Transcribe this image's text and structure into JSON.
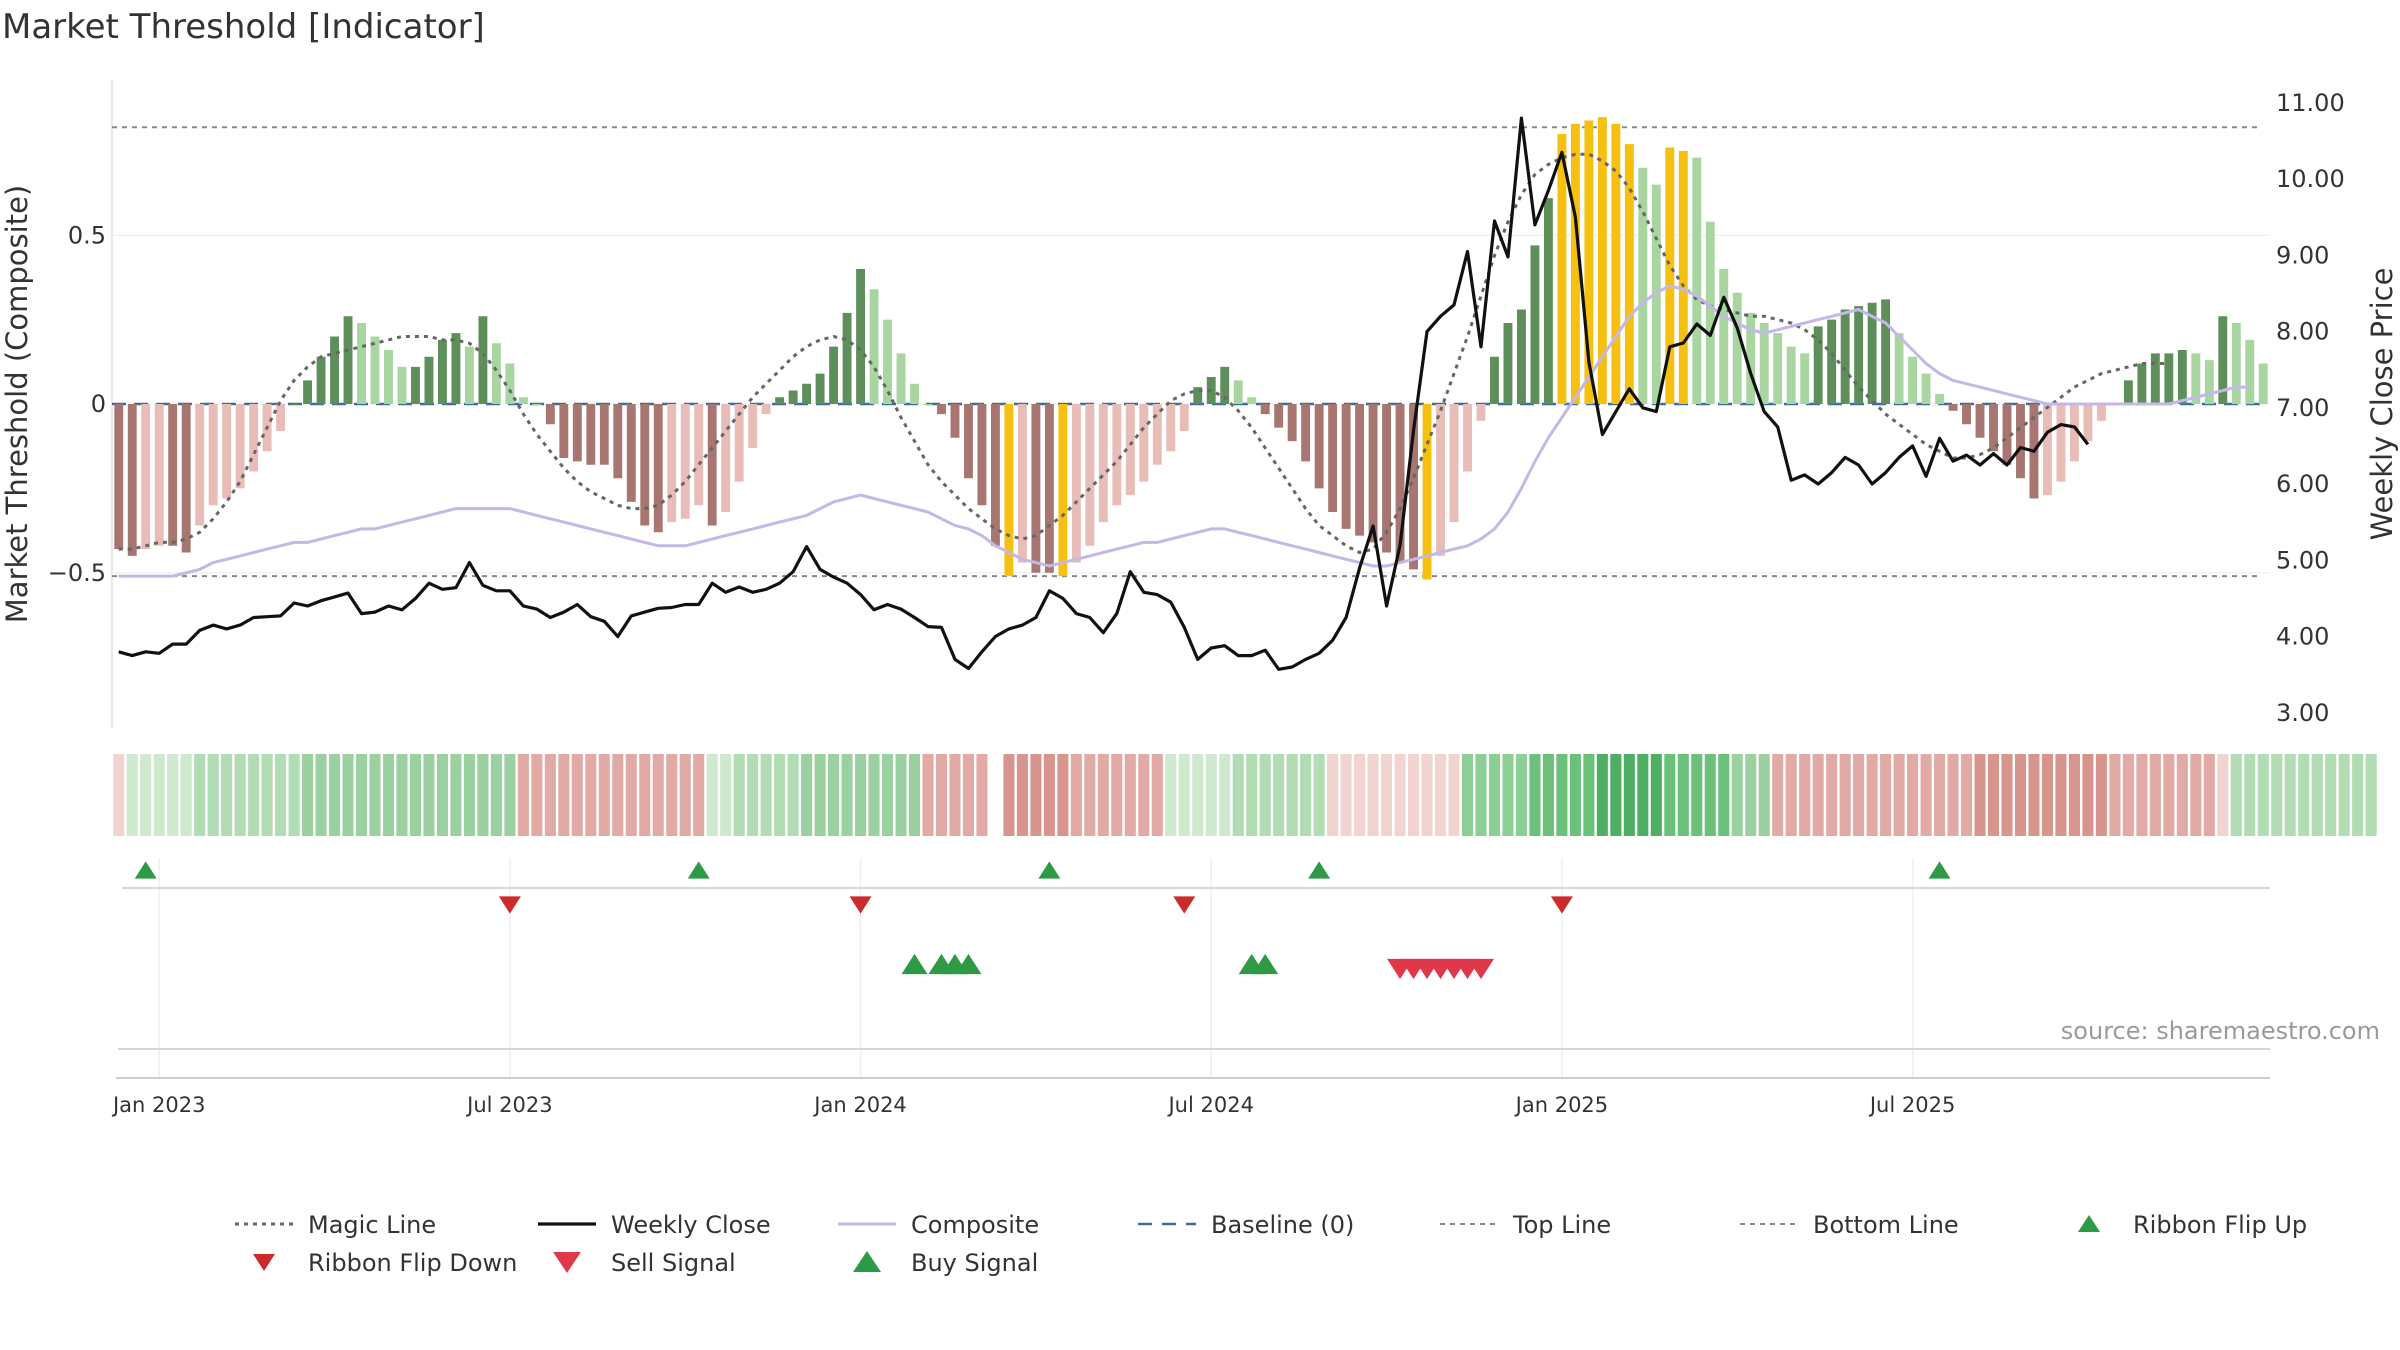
{
  "chart_data": {
    "type": "bar",
    "title": "Market Threshold [Indicator]",
    "source": "source: sharemaestro.com",
    "ylabel_left": "Market Threshold (Composite)",
    "ylabel_right": "Weekly Close Price",
    "ylim_left": [
      -0.96,
      0.96
    ],
    "ylim_right": [
      2.8,
      11.3
    ],
    "left_ticks": [
      {
        "v": 0.5,
        "label": "0.5"
      },
      {
        "v": 0,
        "label": "0"
      },
      {
        "v": -0.5,
        "label": "−0.5"
      }
    ],
    "right_ticks": [
      {
        "v": 11,
        "label": "11.00"
      },
      {
        "v": 10,
        "label": "10.00"
      },
      {
        "v": 9,
        "label": "9.00"
      },
      {
        "v": 8,
        "label": "8.00"
      },
      {
        "v": 7,
        "label": "7.00"
      },
      {
        "v": 6,
        "label": "6.00"
      },
      {
        "v": 5,
        "label": "5.00"
      },
      {
        "v": 4,
        "label": "4.00"
      },
      {
        "v": 3,
        "label": "3.00"
      }
    ],
    "x_ticks": [
      {
        "week": 3,
        "label": "Jan 2023"
      },
      {
        "week": 29,
        "label": "Jul 2023"
      },
      {
        "week": 55,
        "label": "Jan 2024"
      },
      {
        "week": 81,
        "label": "Jul 2024"
      },
      {
        "week": 107,
        "label": "Jan 2025"
      },
      {
        "week": 133,
        "label": "Jul 2025"
      }
    ],
    "top_line": 0.82,
    "bottom_line": -0.51,
    "baseline": 0,
    "composite_bars": [
      -0.43,
      -0.45,
      -0.43,
      -0.42,
      -0.42,
      -0.44,
      -0.36,
      -0.3,
      -0.28,
      -0.25,
      -0.2,
      -0.14,
      -0.08,
      0.0,
      0.07,
      0.14,
      0.2,
      0.26,
      0.24,
      0.2,
      0.16,
      0.11,
      0.11,
      0.14,
      0.19,
      0.21,
      0.17,
      0.26,
      0.18,
      0.12,
      0.02,
      0.0,
      -0.06,
      -0.16,
      -0.17,
      -0.18,
      -0.18,
      -0.22,
      -0.29,
      -0.36,
      -0.38,
      -0.35,
      -0.34,
      -0.3,
      -0.36,
      -0.32,
      -0.23,
      -0.13,
      -0.03,
      0.02,
      0.04,
      0.06,
      0.09,
      0.17,
      0.27,
      0.4,
      0.34,
      0.25,
      0.15,
      0.06,
      0.0,
      -0.03,
      -0.1,
      -0.22,
      -0.3,
      -0.42,
      -0.51,
      -0.47,
      -0.5,
      -0.5,
      -0.51,
      -0.47,
      -0.42,
      -0.35,
      -0.3,
      -0.27,
      -0.23,
      -0.18,
      -0.14,
      -0.08,
      0.05,
      0.08,
      0.11,
      0.07,
      0.02,
      -0.03,
      -0.07,
      -0.11,
      -0.17,
      -0.25,
      -0.32,
      -0.37,
      -0.39,
      -0.41,
      -0.44,
      -0.47,
      -0.49,
      -0.52,
      -0.45,
      -0.35,
      -0.2,
      -0.05,
      0.14,
      0.24,
      0.28,
      0.47,
      0.61,
      0.8,
      0.83,
      0.84,
      0.85,
      0.83,
      0.77,
      0.7,
      0.65,
      0.76,
      0.75,
      0.73,
      0.54,
      0.4,
      0.33,
      0.27,
      0.24,
      0.21,
      0.17,
      0.15,
      0.23,
      0.25,
      0.28,
      0.29,
      0.3,
      0.31,
      0.21,
      0.14,
      0.09,
      0.03,
      -0.02,
      -0.06,
      -0.1,
      -0.14,
      -0.18,
      -0.22,
      -0.28,
      -0.27,
      -0.23,
      -0.17,
      -0.11,
      -0.05,
      0.0,
      0.07,
      0.12,
      0.15,
      0.15,
      0.16,
      0.15,
      0.13,
      0.26,
      0.24,
      0.19,
      0.12
    ],
    "magic_line": [
      -0.43,
      -0.43,
      -0.42,
      -0.41,
      -0.41,
      -0.4,
      -0.38,
      -0.34,
      -0.29,
      -0.23,
      -0.15,
      -0.07,
      0.01,
      0.07,
      0.11,
      0.14,
      0.15,
      0.16,
      0.17,
      0.18,
      0.19,
      0.2,
      0.2,
      0.2,
      0.19,
      0.19,
      0.18,
      0.15,
      0.1,
      0.04,
      -0.03,
      -0.09,
      -0.14,
      -0.19,
      -0.23,
      -0.26,
      -0.28,
      -0.3,
      -0.31,
      -0.31,
      -0.3,
      -0.27,
      -0.23,
      -0.18,
      -0.13,
      -0.08,
      -0.03,
      0.02,
      0.06,
      0.1,
      0.14,
      0.17,
      0.19,
      0.2,
      0.19,
      0.16,
      0.11,
      0.04,
      -0.04,
      -0.11,
      -0.18,
      -0.23,
      -0.27,
      -0.31,
      -0.34,
      -0.37,
      -0.39,
      -0.4,
      -0.39,
      -0.36,
      -0.33,
      -0.29,
      -0.25,
      -0.21,
      -0.17,
      -0.12,
      -0.07,
      -0.03,
      0.01,
      0.03,
      0.04,
      0.04,
      0.02,
      -0.02,
      -0.07,
      -0.13,
      -0.19,
      -0.25,
      -0.31,
      -0.36,
      -0.39,
      -0.42,
      -0.44,
      -0.43,
      -0.38,
      -0.31,
      -0.22,
      -0.12,
      -0.02,
      0.09,
      0.2,
      0.32,
      0.44,
      0.54,
      0.62,
      0.68,
      0.71,
      0.73,
      0.74,
      0.74,
      0.72,
      0.69,
      0.64,
      0.57,
      0.49,
      0.41,
      0.35,
      0.31,
      0.29,
      0.28,
      0.27,
      0.26,
      0.26,
      0.25,
      0.24,
      0.22,
      0.19,
      0.15,
      0.1,
      0.05,
      0.01,
      -0.03,
      -0.06,
      -0.09,
      -0.12,
      -0.14,
      -0.16,
      -0.16,
      -0.15,
      -0.13,
      -0.1,
      -0.07,
      -0.04,
      -0.01,
      0.02,
      0.05,
      0.07,
      0.09,
      0.1,
      0.11,
      0.12,
      0.12,
      0.12
    ],
    "composite_line": [
      -0.51,
      -0.51,
      -0.51,
      -0.51,
      -0.51,
      -0.5,
      -0.49,
      -0.47,
      -0.46,
      -0.45,
      -0.44,
      -0.43,
      -0.42,
      -0.41,
      -0.41,
      -0.4,
      -0.39,
      -0.38,
      -0.37,
      -0.37,
      -0.36,
      -0.35,
      -0.34,
      -0.33,
      -0.32,
      -0.31,
      -0.31,
      -0.31,
      -0.31,
      -0.31,
      -0.32,
      -0.33,
      -0.34,
      -0.35,
      -0.36,
      -0.37,
      -0.38,
      -0.39,
      -0.4,
      -0.41,
      -0.42,
      -0.42,
      -0.42,
      -0.41,
      -0.4,
      -0.39,
      -0.38,
      -0.37,
      -0.36,
      -0.35,
      -0.34,
      -0.33,
      -0.31,
      -0.29,
      -0.28,
      -0.27,
      -0.28,
      -0.29,
      -0.3,
      -0.31,
      -0.32,
      -0.34,
      -0.36,
      -0.37,
      -0.39,
      -0.42,
      -0.44,
      -0.46,
      -0.47,
      -0.48,
      -0.47,
      -0.46,
      -0.45,
      -0.44,
      -0.43,
      -0.42,
      -0.41,
      -0.41,
      -0.4,
      -0.39,
      -0.38,
      -0.37,
      -0.37,
      -0.38,
      -0.39,
      -0.4,
      -0.41,
      -0.42,
      -0.43,
      -0.44,
      -0.45,
      -0.46,
      -0.47,
      -0.48,
      -0.48,
      -0.47,
      -0.46,
      -0.45,
      -0.44,
      -0.43,
      -0.42,
      -0.4,
      -0.37,
      -0.32,
      -0.25,
      -0.17,
      -0.1,
      -0.04,
      0.02,
      0.08,
      0.14,
      0.2,
      0.26,
      0.3,
      0.33,
      0.35,
      0.34,
      0.32,
      0.29,
      0.26,
      0.24,
      0.22,
      0.21,
      0.22,
      0.23,
      0.24,
      0.25,
      0.26,
      0.27,
      0.28,
      0.26,
      0.24,
      0.2,
      0.16,
      0.12,
      0.09,
      0.07,
      0.06,
      0.05,
      0.04,
      0.03,
      0.02,
      0.01,
      0.0,
      0.0,
      0.0,
      0.0,
      0.0,
      0.0,
      0.0,
      0.0,
      0.0,
      0.0,
      0.01,
      0.02,
      0.03,
      0.04,
      0.05,
      0.05
    ],
    "weekly_close": [
      3.8,
      3.75,
      3.8,
      3.78,
      3.9,
      3.9,
      4.08,
      4.15,
      4.1,
      4.15,
      4.25,
      4.26,
      4.27,
      4.44,
      4.4,
      4.47,
      4.52,
      4.57,
      4.3,
      4.32,
      4.4,
      4.35,
      4.5,
      4.7,
      4.62,
      4.64,
      4.97,
      4.67,
      4.6,
      4.6,
      4.4,
      4.36,
      4.25,
      4.32,
      4.42,
      4.26,
      4.2,
      4.0,
      4.27,
      4.32,
      4.37,
      4.38,
      4.42,
      4.42,
      4.7,
      4.58,
      4.65,
      4.58,
      4.62,
      4.7,
      4.85,
      5.18,
      4.88,
      4.78,
      4.7,
      4.55,
      4.35,
      4.42,
      4.36,
      4.25,
      4.13,
      4.12,
      3.7,
      3.58,
      3.8,
      4.0,
      4.1,
      4.15,
      4.25,
      4.6,
      4.5,
      4.3,
      4.25,
      4.05,
      4.3,
      4.85,
      4.58,
      4.55,
      4.45,
      4.12,
      3.7,
      3.85,
      3.88,
      3.75,
      3.75,
      3.82,
      3.57,
      3.6,
      3.7,
      3.78,
      3.95,
      4.25,
      4.9,
      5.45,
      4.4,
      5.2,
      6.7,
      8.0,
      8.2,
      8.35,
      9.05,
      7.8,
      9.45,
      8.98,
      10.8,
      9.4,
      9.85,
      10.35,
      9.5,
      7.6,
      6.65,
      6.95,
      7.25,
      7.0,
      6.95,
      7.8,
      7.85,
      8.1,
      7.95,
      8.45,
      8.05,
      7.45,
      6.95,
      6.75,
      6.05,
      6.12,
      6.0,
      6.15,
      6.35,
      6.25,
      6.0,
      6.15,
      6.35,
      6.5,
      6.1,
      6.6,
      6.3,
      6.38,
      6.25,
      6.4,
      6.25,
      6.48,
      6.43,
      6.68,
      6.78,
      6.75,
      6.52
    ],
    "ribbon_levels": [
      -1,
      1,
      1,
      1,
      1,
      1,
      2,
      2,
      2,
      2,
      2,
      2,
      2,
      2,
      3,
      3,
      3,
      3,
      3,
      3,
      3,
      3,
      3,
      3,
      3,
      3,
      3,
      3,
      3,
      3,
      -2,
      -2,
      -2,
      -2,
      -2,
      -2,
      -2,
      -2,
      -2,
      -2,
      -2,
      -2,
      -2,
      -2,
      1,
      1,
      2,
      2,
      2,
      2,
      2,
      3,
      3,
      3,
      3,
      3,
      3,
      3,
      3,
      3,
      -2,
      -2,
      -2,
      -2,
      -2,
      0,
      -3,
      -3,
      -3,
      -3,
      -3,
      -2,
      -2,
      -2,
      -2,
      -2,
      -2,
      -2,
      1,
      1,
      1,
      1,
      1,
      2,
      2,
      2,
      2,
      2,
      2,
      2,
      -1,
      -1,
      -1,
      -1,
      -1,
      -1,
      -1,
      -1,
      -1,
      -1,
      4,
      4,
      4,
      4,
      4,
      5,
      5,
      5,
      5,
      5,
      6,
      6,
      6,
      6,
      6,
      5,
      5,
      5,
      5,
      5,
      3,
      3,
      3,
      -2,
      -2,
      -2,
      -2,
      -2,
      -2,
      -2,
      -2,
      -2,
      -2,
      -2,
      -2,
      -2,
      -2,
      -2,
      -3,
      -3,
      -3,
      -3,
      -3,
      -3,
      -3,
      -3,
      -3,
      -3,
      -2,
      -2,
      -2,
      -2,
      -2,
      -2,
      -2,
      -2,
      -1,
      2,
      2,
      2,
      2,
      2,
      2,
      2,
      2,
      2,
      2,
      2
    ],
    "ribbon_flip_up_weeks": [
      2,
      43,
      69,
      89,
      135
    ],
    "ribbon_flip_down_weeks": [
      29,
      55,
      79,
      107
    ],
    "buy_signal_weeks": [
      59,
      61,
      62,
      63,
      84,
      85
    ],
    "sell_signal_weeks": [
      95,
      96,
      97,
      98,
      99,
      100,
      101
    ],
    "legend": [
      {
        "key": "magic",
        "label": "Magic Line"
      },
      {
        "key": "close",
        "label": "Weekly Close"
      },
      {
        "key": "composite",
        "label": "Composite"
      },
      {
        "key": "baseline",
        "label": "Baseline (0)"
      },
      {
        "key": "top",
        "label": "Top Line"
      },
      {
        "key": "bottom",
        "label": "Bottom Line"
      },
      {
        "key": "flipup",
        "label": "Ribbon Flip Up"
      },
      {
        "key": "flipdown",
        "label": "Ribbon Flip Down"
      },
      {
        "key": "sell",
        "label": "Sell Signal"
      },
      {
        "key": "buy",
        "label": "Buy Signal"
      }
    ],
    "colors": {
      "pos_strong": "#5e8f5a",
      "pos_weak": "#a8d5a0",
      "neg_strong": "#a77670",
      "neg_weak": "#e8bdb7",
      "extreme": "#f5c00f",
      "close": "#111111",
      "composite": "#c3b8e6",
      "magic": "#666666",
      "baseline": "#3b6e9c",
      "guide": "#888888",
      "flip_up": "#2e9a46",
      "flip_down": "#cc2b2b",
      "buy": "#2e9a46",
      "sell": "#e0384b"
    }
  }
}
